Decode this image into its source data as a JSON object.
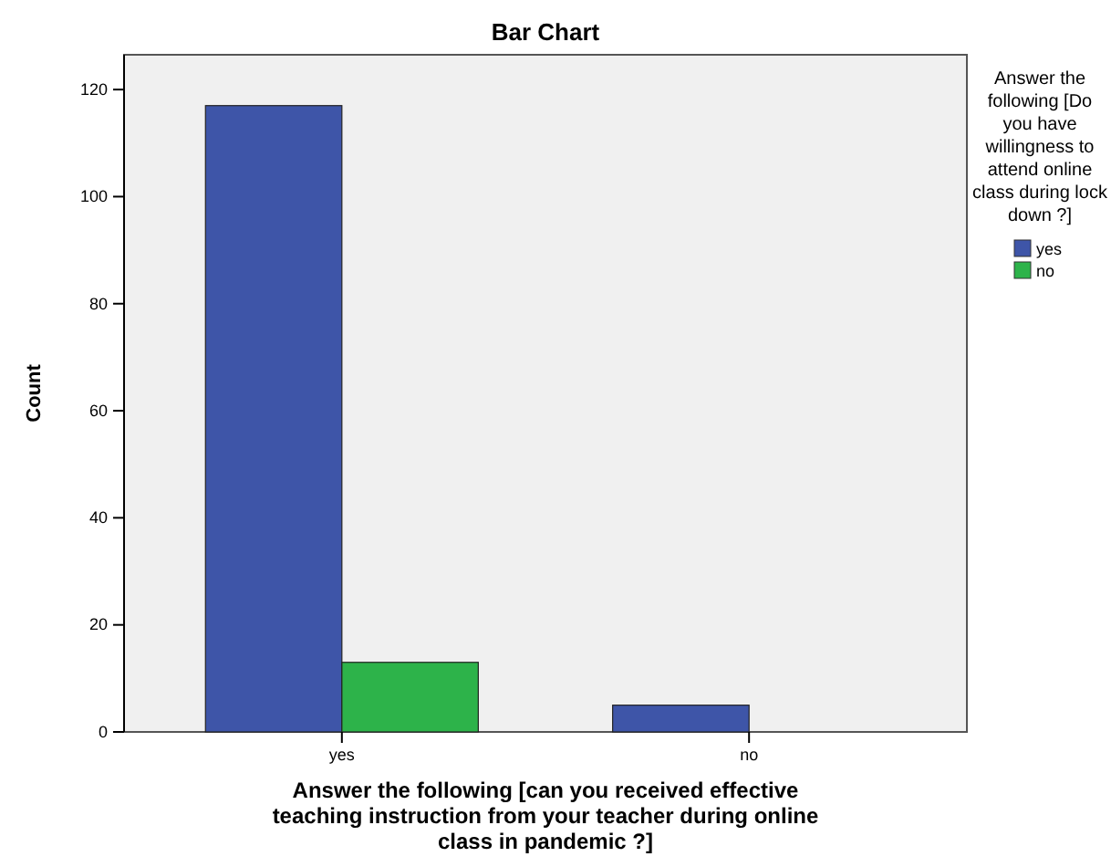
{
  "chart_data": {
    "type": "bar",
    "title": "Bar Chart",
    "xlabel": "Answer the following [can you received effective teaching instruction from your teacher during online class in pandemic ?]",
    "ylabel": "Count",
    "legend_title": "Answer the following [Do you have willingness to attend online class during lock down ?]",
    "categories": [
      "yes",
      "no"
    ],
    "series": [
      {
        "name": "yes",
        "color": "#3e55a8",
        "values": [
          117,
          5
        ]
      },
      {
        "name": "no",
        "color": "#2db34a",
        "values": [
          13,
          0
        ]
      }
    ],
    "ylim": [
      0,
      126.5
    ],
    "yticks": [
      0,
      20,
      40,
      60,
      80,
      100,
      120
    ],
    "grid": false,
    "legend": "right"
  }
}
